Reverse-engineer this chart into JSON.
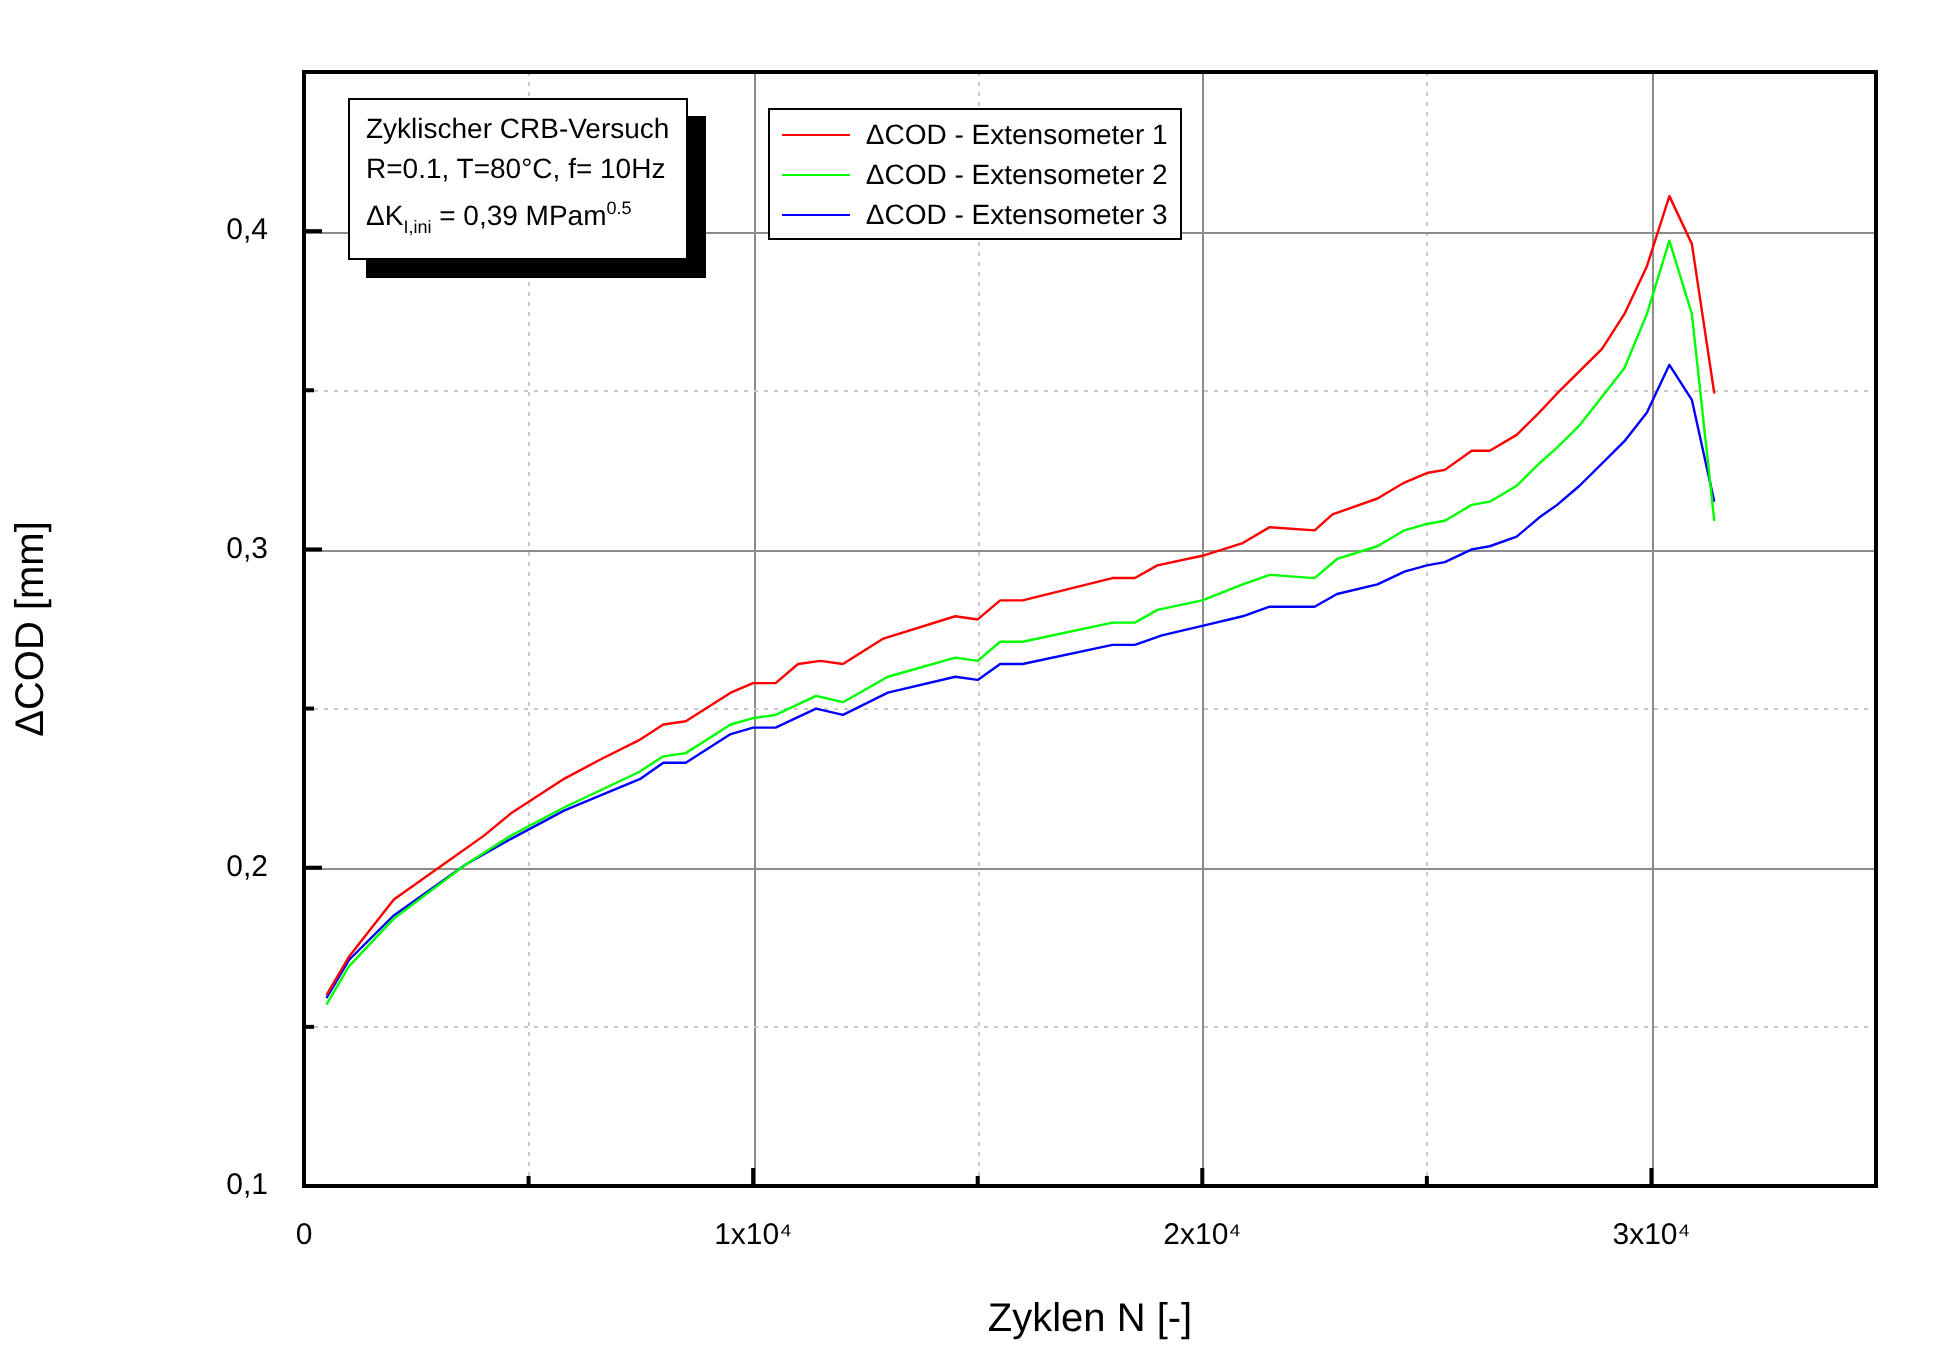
{
  "chart_data": {
    "type": "line",
    "xlabel": "Zyklen N [-]",
    "ylabel": "ΔCOD [mm]",
    "annotations": [
      "Zyklischer CRB-Versuch",
      "R=0.1, T=80°C, f= 10Hz",
      "ΔK$_{I,ini}$ = 0,39 MPam$^{0.5}$"
    ],
    "xlim": [
      0,
      35000
    ],
    "xticks": [
      0,
      {
        "value": 5000,
        "label": null
      },
      {
        "value": 10000,
        "label": "1x10⁴"
      },
      {
        "value": 15000,
        "label": null
      },
      {
        "value": 20000,
        "label": "2x10⁴"
      },
      {
        "value": 25000,
        "label": null
      },
      {
        "value": 30000,
        "label": "3x10⁴"
      }
    ],
    "ylim": [
      0.1,
      0.45
    ],
    "yticks": [
      {
        "value": 0.1,
        "label": "0,1"
      },
      {
        "value": 0.15,
        "label": null
      },
      {
        "value": 0.2,
        "label": "0,2"
      },
      {
        "value": 0.25,
        "label": null
      },
      {
        "value": 0.3,
        "label": "0,3"
      },
      {
        "value": 0.35,
        "label": null
      },
      {
        "value": 0.4,
        "label": "0,4"
      }
    ],
    "grid": true,
    "legend": "top",
    "marker": "none",
    "line_style": "solid",
    "series": [
      {
        "name": "ΔCOD - Extensometer 1",
        "color": "#ff0000",
        "x": [
          500,
          1000,
          2000,
          3100,
          4000,
          4600,
          5800,
          6600,
          7450,
          8000,
          8500,
          9500,
          10000,
          10500,
          11000,
          11500,
          12000,
          12900,
          14500,
          15000,
          15500,
          16000,
          18000,
          18500,
          19000,
          20000,
          20900,
          21500,
          22500,
          22900,
          23900,
          24500,
          25000,
          25400,
          26000,
          26400,
          27000,
          27500,
          27900,
          28400,
          28900,
          29400,
          29900,
          30400,
          30900,
          31400
        ],
        "values": [
          0.16,
          0.172,
          0.19,
          0.201,
          0.21,
          0.217,
          0.228,
          0.234,
          0.24,
          0.245,
          0.246,
          0.255,
          0.258,
          0.258,
          0.264,
          0.265,
          0.264,
          0.272,
          0.279,
          0.278,
          0.284,
          0.284,
          0.291,
          0.291,
          0.295,
          0.298,
          0.302,
          0.307,
          0.306,
          0.311,
          0.316,
          0.321,
          0.324,
          0.325,
          0.331,
          0.331,
          0.336,
          0.343,
          0.349,
          0.356,
          0.363,
          0.374,
          0.389,
          0.411,
          0.396,
          0.349
        ]
      },
      {
        "name": "ΔCOD - Extensometer 2",
        "color": "#00ff00",
        "x": [
          500,
          1000,
          2000,
          3600,
          4600,
          5800,
          7450,
          8000,
          8500,
          9500,
          10000,
          10500,
          11400,
          12000,
          13000,
          14500,
          15000,
          15500,
          16000,
          18000,
          18500,
          19000,
          20000,
          20900,
          21500,
          22500,
          23000,
          23900,
          24500,
          25000,
          25400,
          26000,
          26400,
          27000,
          27500,
          27900,
          28400,
          28900,
          29400,
          29900,
          30400,
          30900,
          31400
        ],
        "values": [
          0.157,
          0.169,
          0.184,
          0.201,
          0.21,
          0.219,
          0.23,
          0.235,
          0.236,
          0.245,
          0.247,
          0.248,
          0.254,
          0.252,
          0.26,
          0.266,
          0.265,
          0.271,
          0.271,
          0.277,
          0.277,
          0.281,
          0.284,
          0.289,
          0.292,
          0.291,
          0.297,
          0.301,
          0.306,
          0.308,
          0.309,
          0.314,
          0.315,
          0.32,
          0.327,
          0.332,
          0.339,
          0.348,
          0.357,
          0.374,
          0.397,
          0.374,
          0.309
        ]
      },
      {
        "name": "ΔCOD - Extensometer 3",
        "color": "#0000ff",
        "x": [
          500,
          1000,
          2000,
          3600,
          4600,
          5800,
          7500,
          8000,
          8500,
          9500,
          10000,
          10500,
          11400,
          12000,
          13000,
          14500,
          15000,
          15500,
          16000,
          18000,
          18500,
          19100,
          20000,
          20900,
          21500,
          22500,
          23000,
          23900,
          24500,
          25000,
          25400,
          26000,
          26400,
          27000,
          27500,
          27900,
          28400,
          28900,
          29400,
          29900,
          30400,
          30900,
          31400
        ],
        "values": [
          0.159,
          0.171,
          0.185,
          0.201,
          0.209,
          0.218,
          0.228,
          0.233,
          0.233,
          0.242,
          0.244,
          0.244,
          0.25,
          0.248,
          0.255,
          0.26,
          0.259,
          0.264,
          0.264,
          0.27,
          0.27,
          0.273,
          0.276,
          0.279,
          0.282,
          0.282,
          0.286,
          0.289,
          0.293,
          0.295,
          0.296,
          0.3,
          0.301,
          0.304,
          0.31,
          0.314,
          0.32,
          0.327,
          0.334,
          0.343,
          0.358,
          0.347,
          0.315
        ]
      }
    ]
  }
}
